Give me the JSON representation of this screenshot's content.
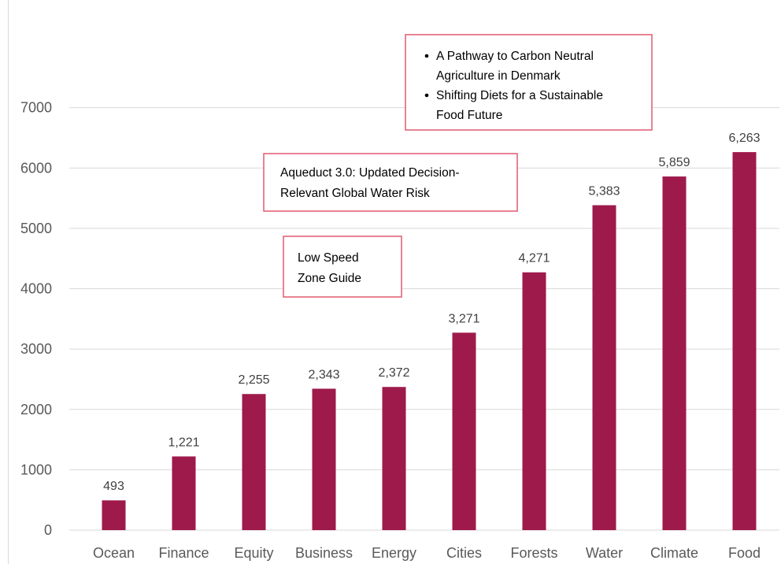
{
  "chart_data": {
    "type": "bar",
    "categories": [
      "Ocean",
      "Finance",
      "Equity",
      "Business",
      "Energy",
      "Cities",
      "Forests",
      "Water",
      "Climate",
      "Food"
    ],
    "values": [
      493,
      1221,
      2255,
      2343,
      2372,
      3271,
      4271,
      5383,
      5859,
      6263
    ],
    "data_labels": [
      "493",
      "1,221",
      "2,255",
      "2,343",
      "2,372",
      "3,271",
      "4,271",
      "5,383",
      "5,859",
      "6,263"
    ],
    "yticks": [
      "0",
      "1000",
      "2000",
      "3000",
      "4000",
      "5000",
      "6000",
      "7000"
    ],
    "ylim": [
      0,
      8000
    ],
    "grid": true,
    "bar_color": "#9e1a4b",
    "annotations": [
      {
        "target": "Cities",
        "lines": [
          "Low Speed",
          "Zone Guide"
        ],
        "bullets": false
      },
      {
        "target": "Water",
        "lines": [
          "Aqueduct 3.0: Updated Decision-",
          "Relevant Global Water Risk"
        ],
        "bullets": false
      },
      {
        "target": "Food",
        "lines": [
          "A Pathway to Carbon Neutral",
          "Agriculture in Denmark",
          "Shifting Diets for a Sustainable",
          "Food Future"
        ],
        "bullets": true,
        "bullet_starts": [
          0,
          2
        ]
      }
    ],
    "annotation_border_color": "#e05a70"
  }
}
